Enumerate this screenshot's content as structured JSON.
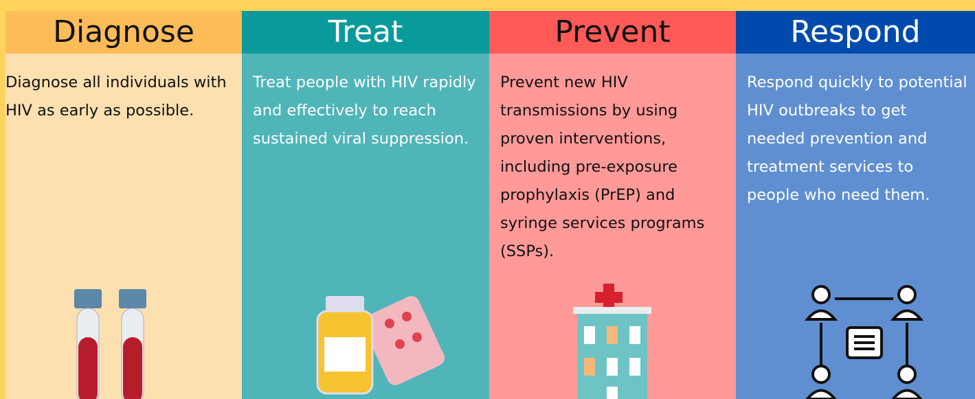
{
  "columns": [
    {
      "title": "Diagnose",
      "text": "Diagnose all individuals with HIV as early as possible."
    },
    {
      "title": "Treat",
      "text": "Treat people with HIV rapidly and effectively to reach sustained viral suppression."
    },
    {
      "title": "Prevent",
      "text": "Prevent new HIV transmissions by using proven interventions, including pre-exposure prophylaxis (PrEP) and syringe services programs (SSPs)."
    },
    {
      "title": "Respond",
      "text": "Respond quickly to potential HIV outbreaks to get needed prevention and treatment services to people who need them."
    }
  ]
}
